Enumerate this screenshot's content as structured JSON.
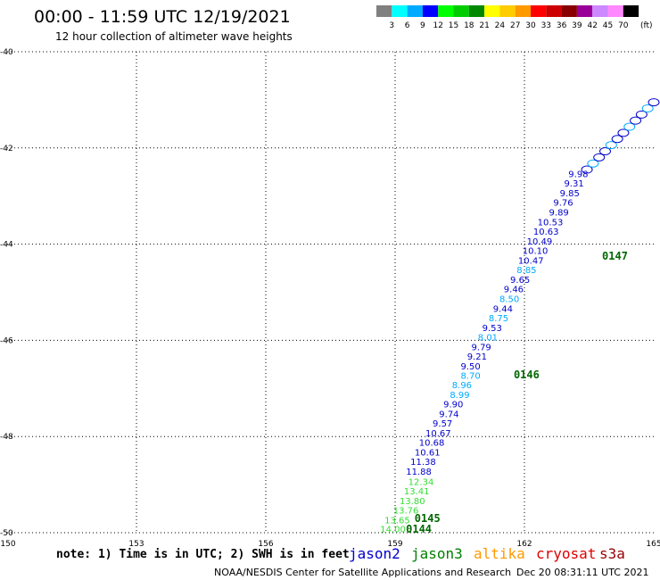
{
  "title": "00:00 - 11:59 UTC 12/19/2021",
  "subtitle": "12 hour collection of altimeter wave heights",
  "note": "note: 1) Time is in UTC; 2) SWH is in feet",
  "credit": "NOAA/NESDIS Center for Satellite Applications and Research",
  "timestamp": "Dec 20 08:31:11 UTC 2021",
  "satellites": [
    {
      "name": "jason2",
      "color": "#0000cc"
    },
    {
      "name": "jason3",
      "color": "#008000"
    },
    {
      "name": "altika",
      "color": "#ff9900"
    },
    {
      "name": "cryosat",
      "color": "#dd0000"
    },
    {
      "name": "s3a",
      "color": "#990000"
    }
  ],
  "color_scale": {
    "unit": "(ft)",
    "labels": [
      "3",
      "6",
      "9",
      "12",
      "15",
      "18",
      "21",
      "24",
      "27",
      "30",
      "33",
      "36",
      "39",
      "42",
      "45",
      "70"
    ],
    "colors": [
      "#808080",
      "#00ffff",
      "#00aaff",
      "#0000ff",
      "#00ff00",
      "#00cc00",
      "#008800",
      "#ffff00",
      "#ffcc00",
      "#ff9900",
      "#ff0000",
      "#cc0000",
      "#880000",
      "#990099",
      "#cc88ff",
      "#ff88ff",
      "#000000"
    ]
  },
  "chart_data": {
    "type": "scatter",
    "title": "00:00 - 11:59 UTC 12/19/2021",
    "subtitle": "12 hour collection of altimeter wave heights",
    "xlim": [
      150,
      165
    ],
    "ylim": [
      -50,
      -40
    ],
    "x_ticks": [
      "150",
      "153",
      "156",
      "159",
      "162",
      "165"
    ],
    "y_ticks": [
      "-40",
      "-42",
      "-44",
      "-46",
      "-48",
      "-50"
    ],
    "grid": true,
    "points": [
      {
        "lon": 158.95,
        "lat": -49.92,
        "swh": "14.00",
        "color": "#33dd33"
      },
      {
        "lon": 159.05,
        "lat": -49.73,
        "swh": "13.65",
        "color": "#33dd33"
      },
      {
        "lon": 159.25,
        "lat": -49.53,
        "swh": "13.76",
        "color": "#33dd33"
      },
      {
        "lon": 159.4,
        "lat": -49.33,
        "swh": "13.80",
        "color": "#33dd33"
      },
      {
        "lon": 159.5,
        "lat": -49.13,
        "swh": "13.41",
        "color": "#33dd33"
      },
      {
        "lon": 159.6,
        "lat": -48.93,
        "swh": "12.34",
        "color": "#33dd33"
      },
      {
        "lon": 159.55,
        "lat": -48.72,
        "swh": "11.88",
        "color": "#0000cc"
      },
      {
        "lon": 159.65,
        "lat": -48.52,
        "swh": "11.38",
        "color": "#0000cc"
      },
      {
        "lon": 159.75,
        "lat": -48.32,
        "swh": "10.61",
        "color": "#0000cc"
      },
      {
        "lon": 159.85,
        "lat": -48.12,
        "swh": "10.68",
        "color": "#0000cc"
      },
      {
        "lon": 160.0,
        "lat": -47.92,
        "swh": "10.67",
        "color": "#0000cc"
      },
      {
        "lon": 160.1,
        "lat": -47.72,
        "swh": "9.57",
        "color": "#0000cc"
      },
      {
        "lon": 160.25,
        "lat": -47.52,
        "swh": "9.74",
        "color": "#0000cc"
      },
      {
        "lon": 160.35,
        "lat": -47.32,
        "swh": "9.90",
        "color": "#0000cc"
      },
      {
        "lon": 160.5,
        "lat": -47.12,
        "swh": "8.99",
        "color": "#00aaff"
      },
      {
        "lon": 160.55,
        "lat": -46.92,
        "swh": "8.96",
        "color": "#00aaff"
      },
      {
        "lon": 160.75,
        "lat": -46.73,
        "swh": "8.70",
        "color": "#00aaff"
      },
      {
        "lon": 160.75,
        "lat": -46.53,
        "swh": "9.50",
        "color": "#0000cc"
      },
      {
        "lon": 160.9,
        "lat": -46.33,
        "swh": "9.21",
        "color": "#0000cc"
      },
      {
        "lon": 161.0,
        "lat": -46.13,
        "swh": "9.79",
        "color": "#0000cc"
      },
      {
        "lon": 161.15,
        "lat": -45.93,
        "swh": "8.01",
        "color": "#00aaff"
      },
      {
        "lon": 161.25,
        "lat": -45.73,
        "swh": "9.53",
        "color": "#0000cc"
      },
      {
        "lon": 161.4,
        "lat": -45.53,
        "swh": "8.75",
        "color": "#00aaff"
      },
      {
        "lon": 161.5,
        "lat": -45.33,
        "swh": "9.44",
        "color": "#0000cc"
      },
      {
        "lon": 161.65,
        "lat": -45.13,
        "swh": "8.50",
        "color": "#00aaff"
      },
      {
        "lon": 161.75,
        "lat": -44.93,
        "swh": "9.46",
        "color": "#0000cc"
      },
      {
        "lon": 161.9,
        "lat": -44.73,
        "swh": "9.65",
        "color": "#0000cc"
      },
      {
        "lon": 162.05,
        "lat": -44.53,
        "swh": "8.85",
        "color": "#00aaff"
      },
      {
        "lon": 162.15,
        "lat": -44.33,
        "swh": "10.47",
        "color": "#0000cc"
      },
      {
        "lon": 162.25,
        "lat": -44.13,
        "swh": "10.10",
        "color": "#0000cc"
      },
      {
        "lon": 162.35,
        "lat": -43.93,
        "swh": "10.49",
        "color": "#0000cc"
      },
      {
        "lon": 162.5,
        "lat": -43.73,
        "swh": "10.63",
        "color": "#0000cc"
      },
      {
        "lon": 162.6,
        "lat": -43.53,
        "swh": "10.53",
        "color": "#0000cc"
      },
      {
        "lon": 162.8,
        "lat": -43.33,
        "swh": "9.89",
        "color": "#0000cc"
      },
      {
        "lon": 162.9,
        "lat": -43.13,
        "swh": "9.76",
        "color": "#0000cc"
      },
      {
        "lon": 163.05,
        "lat": -42.93,
        "swh": "9.85",
        "color": "#0000cc"
      },
      {
        "lon": 163.15,
        "lat": -42.73,
        "swh": "9.31",
        "color": "#0000cc"
      },
      {
        "lon": 163.25,
        "lat": -42.53,
        "swh": "9.98",
        "color": "#0000cc"
      }
    ],
    "dense_cluster": {
      "lon_start": 163.45,
      "lat_start": -42.45,
      "lon_end": 165.0,
      "lat_end": -41.05
    },
    "passes": [
      {
        "label": "0144",
        "lon": 159.55,
        "lat": -49.93,
        "color": "#006600"
      },
      {
        "label": "0145",
        "lon": 159.75,
        "lat": -49.7,
        "color": "#006600"
      },
      {
        "label": "0146",
        "lon": 162.05,
        "lat": -46.72,
        "color": "#006600"
      },
      {
        "label": "0147",
        "lon": 164.1,
        "lat": -44.25,
        "color": "#006600"
      }
    ]
  }
}
